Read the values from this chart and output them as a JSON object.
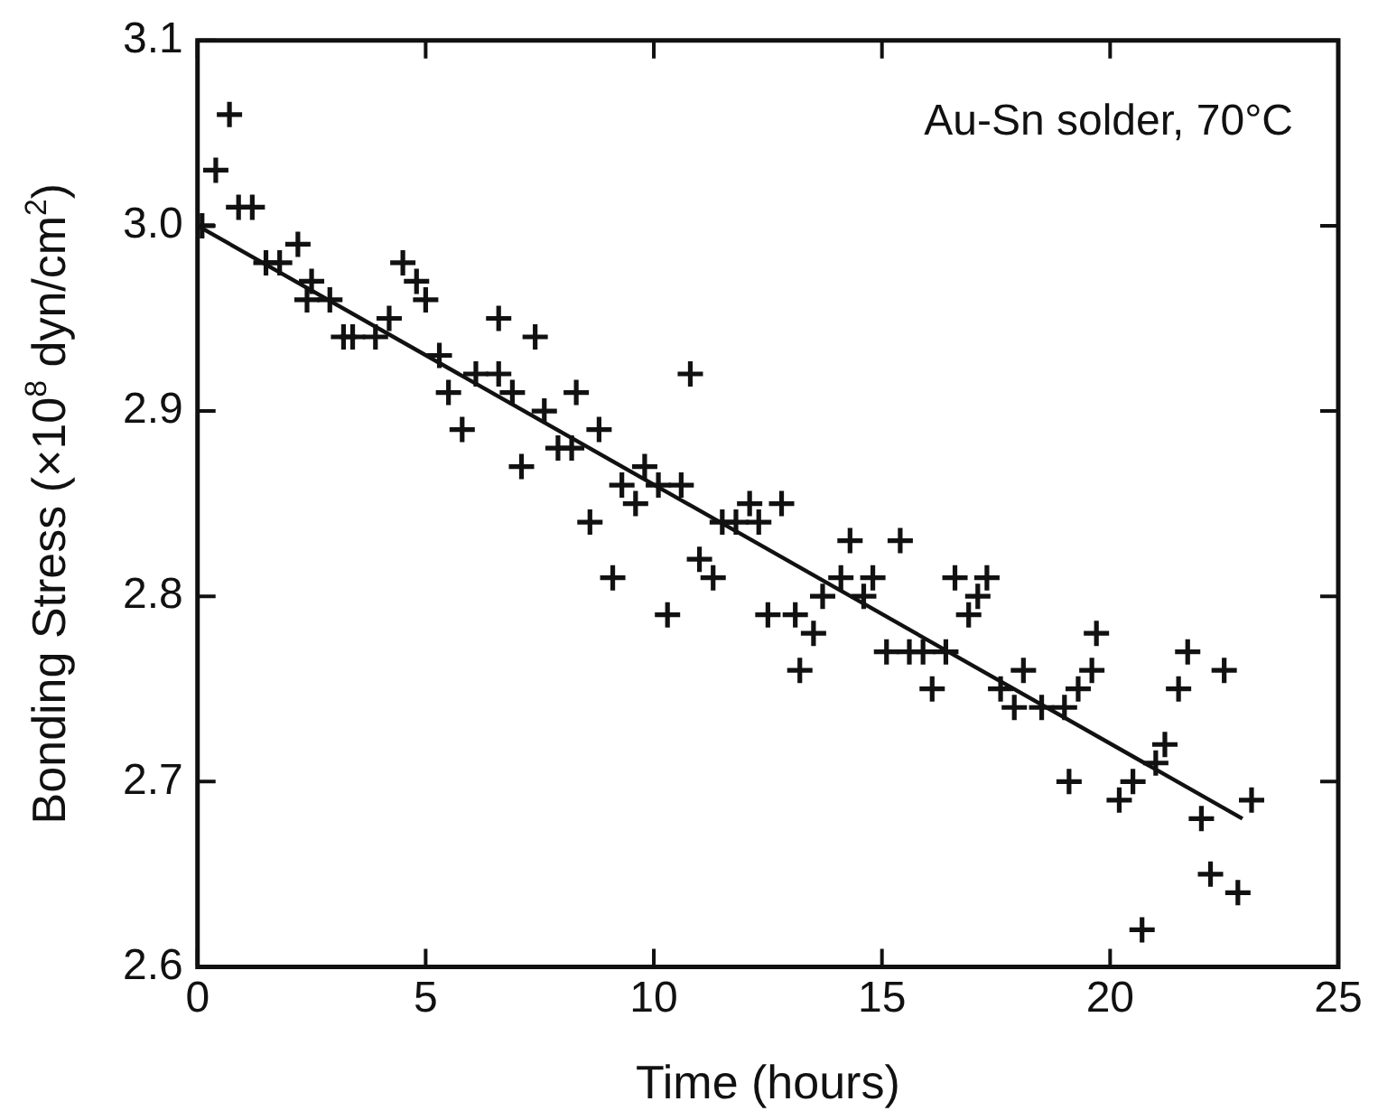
{
  "chart_data": {
    "type": "scatter",
    "xlabel": "Time (hours)",
    "ylabel": "Bonding Stress (×10$^{8}$ dyn/cm$^{2}$)",
    "annotations": [
      "Au-Sn solder, 70°C"
    ],
    "xlim": [
      0,
      25
    ],
    "xticks": [
      0,
      5,
      10,
      15,
      20,
      25
    ],
    "ylim": [
      2.6,
      3.1
    ],
    "yticks": [
      2.6,
      2.7,
      2.8,
      2.9,
      {
        "value": 3,
        "label": "3.0"
      },
      3.1
    ],
    "grid": false,
    "legend": false,
    "marker": "cross",
    "series": [
      {
        "color": "#111111",
        "x": [
          0.1,
          0.4,
          0.7,
          0.9,
          1.2,
          1.5,
          1.8,
          2.2,
          2.5,
          2.4,
          2.9,
          3.2,
          3.4,
          3.9,
          4.2,
          4.5,
          4.8,
          5.0,
          5.3,
          5.5,
          5.8,
          6.1,
          6.6,
          6.6,
          6.9,
          7.1,
          7.4,
          7.6,
          7.9,
          8.2,
          8.3,
          8.6,
          8.8,
          9.1,
          9.3,
          9.6,
          9.8,
          10.1,
          10.3,
          10.6,
          10.8,
          11.0,
          11.3,
          11.5,
          11.8,
          12.1,
          12.3,
          12.5,
          12.8,
          13.1,
          13.2,
          13.5,
          13.7,
          14.1,
          14.3,
          14.6,
          14.8,
          15.1,
          15.4,
          15.6,
          15.9,
          16.1,
          16.4,
          16.6,
          16.9,
          17.1,
          17.3,
          17.6,
          17.9,
          18.1,
          18.5,
          19.0,
          19.1,
          19.3,
          19.6,
          19.7,
          20.2,
          20.5,
          20.7,
          21.0,
          21.2,
          21.5,
          21.7,
          22.0,
          22.2,
          22.5,
          22.8,
          23.1
        ],
        "values": [
          3.0,
          3.03,
          3.06,
          3.01,
          3.01,
          2.98,
          2.98,
          2.99,
          2.97,
          2.96,
          2.96,
          2.94,
          2.94,
          2.94,
          2.95,
          2.98,
          2.97,
          2.96,
          2.93,
          2.91,
          2.89,
          2.92,
          2.92,
          2.95,
          2.91,
          2.87,
          2.94,
          2.9,
          2.88,
          2.88,
          2.91,
          2.84,
          2.89,
          2.81,
          2.86,
          2.85,
          2.87,
          2.86,
          2.79,
          2.86,
          2.92,
          2.82,
          2.81,
          2.84,
          2.84,
          2.85,
          2.84,
          2.79,
          2.85,
          2.79,
          2.76,
          2.78,
          2.8,
          2.81,
          2.83,
          2.8,
          2.81,
          2.77,
          2.83,
          2.77,
          2.77,
          2.75,
          2.77,
          2.81,
          2.79,
          2.8,
          2.81,
          2.75,
          2.74,
          2.76,
          2.74,
          2.74,
          2.7,
          2.75,
          2.76,
          2.78,
          2.69,
          2.7,
          2.62,
          2.71,
          2.72,
          2.75,
          2.77,
          2.68,
          2.65,
          2.76,
          2.64,
          2.69
        ]
      },
      {
        "type": "line",
        "color": "#111111",
        "marker": "none",
        "x": [
          0,
          22.9
        ],
        "values": [
          3.0,
          2.68
        ]
      }
    ]
  }
}
